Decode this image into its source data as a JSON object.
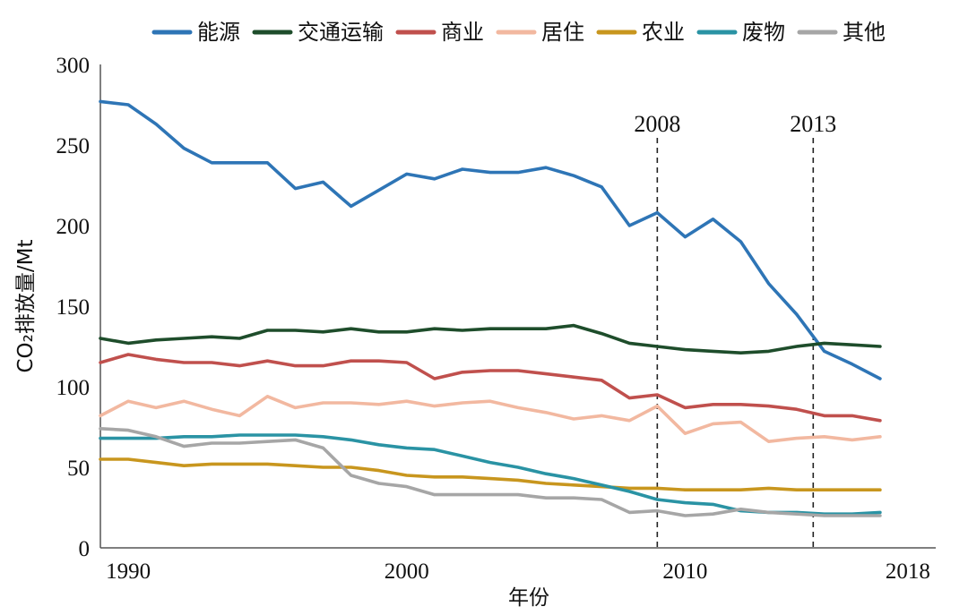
{
  "chart_data": {
    "type": "line",
    "xlabel": "年份",
    "ylabel": "CO₂排放量/Mt",
    "xlim": [
      1989,
      2019
    ],
    "ylim": [
      0,
      300
    ],
    "xticks": [
      "1990",
      "2000",
      "2010",
      "2018"
    ],
    "yticks": [
      "0",
      "50",
      "100",
      "150",
      "200",
      "250",
      "300"
    ],
    "legend_position": "top",
    "grid": false,
    "vlines": [
      {
        "x": 2009,
        "label": "2008"
      },
      {
        "x": 2014.6,
        "label": "2013"
      }
    ],
    "x": [
      1989,
      1990,
      1991,
      1992,
      1993,
      1994,
      1995,
      1996,
      1997,
      1998,
      1999,
      2000,
      2001,
      2002,
      2003,
      2004,
      2005,
      2006,
      2007,
      2008,
      2009,
      2010,
      2011,
      2012,
      2013,
      2014,
      2015,
      2016,
      2017,
      2018,
      2019
    ],
    "series": [
      {
        "name": "能源",
        "color": "#2E75B6",
        "values": [
          277,
          275,
          263,
          248,
          239,
          239,
          239,
          223,
          227,
          212,
          222,
          232,
          229,
          235,
          233,
          233,
          236,
          231,
          224,
          200,
          208,
          193,
          204,
          190,
          164,
          145,
          122,
          114,
          105,
          null,
          null
        ]
      },
      {
        "name": "交通运输",
        "color": "#1E4D2B",
        "values": [
          130,
          127,
          129,
          130,
          131,
          130,
          135,
          135,
          134,
          136,
          134,
          134,
          136,
          135,
          136,
          136,
          136,
          138,
          133,
          127,
          125,
          123,
          122,
          121,
          122,
          125,
          127,
          126,
          125,
          null,
          null
        ]
      },
      {
        "name": "商业",
        "color": "#C0504D",
        "values": [
          115,
          120,
          117,
          115,
          115,
          113,
          116,
          113,
          113,
          116,
          116,
          115,
          105,
          109,
          110,
          110,
          108,
          106,
          104,
          93,
          95,
          87,
          89,
          89,
          88,
          86,
          82,
          82,
          79,
          null,
          null
        ]
      },
      {
        "name": "居住",
        "color": "#F2B8A0",
        "values": [
          82,
          91,
          87,
          91,
          86,
          82,
          94,
          87,
          90,
          90,
          89,
          91,
          88,
          90,
          91,
          87,
          84,
          80,
          82,
          79,
          88,
          71,
          77,
          78,
          66,
          68,
          69,
          67,
          69,
          null,
          null
        ]
      },
      {
        "name": "农业",
        "color": "#C8961E",
        "values": [
          55,
          55,
          53,
          51,
          52,
          52,
          52,
          51,
          50,
          50,
          48,
          45,
          44,
          44,
          43,
          42,
          40,
          39,
          38,
          37,
          37,
          36,
          36,
          36,
          37,
          36,
          36,
          36,
          36,
          null,
          null
        ]
      },
      {
        "name": "废物",
        "color": "#2A93A4",
        "values": [
          68,
          68,
          68,
          69,
          69,
          70,
          70,
          70,
          69,
          67,
          64,
          62,
          61,
          57,
          53,
          50,
          46,
          43,
          39,
          35,
          30,
          28,
          27,
          23,
          22,
          22,
          21,
          21,
          22,
          null,
          null
        ]
      },
      {
        "name": "其他",
        "color": "#A6A6A6",
        "values": [
          74,
          73,
          69,
          63,
          65,
          65,
          66,
          67,
          62,
          45,
          40,
          38,
          33,
          33,
          33,
          33,
          31,
          31,
          30,
          22,
          23,
          20,
          21,
          24,
          22,
          21,
          20,
          20,
          20,
          null,
          null
        ]
      }
    ]
  }
}
